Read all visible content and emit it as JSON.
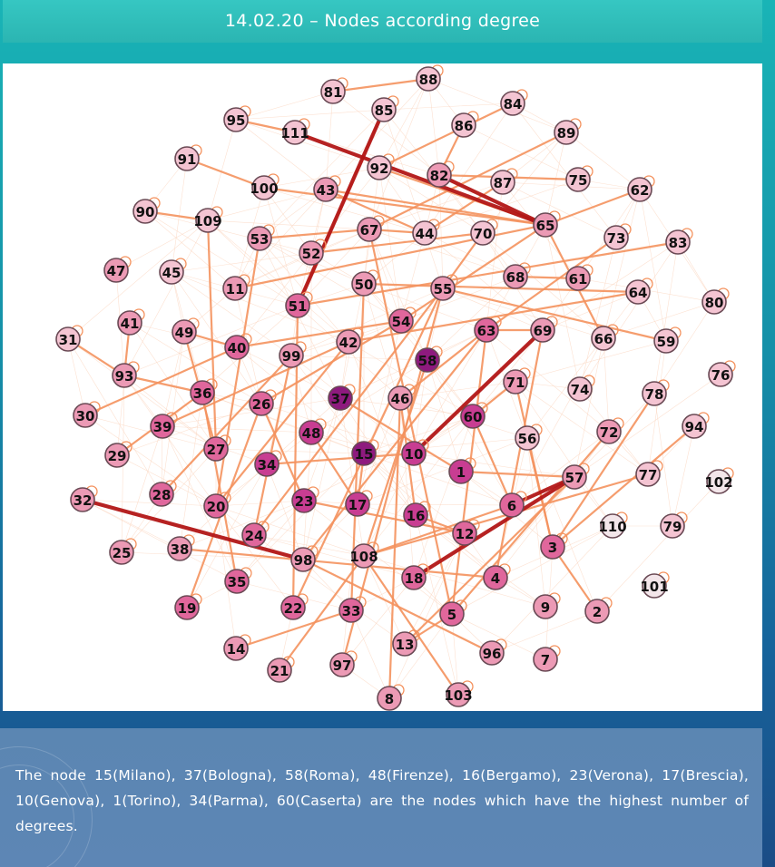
{
  "slide": {
    "title": "14.02.20 – Nodes according degree",
    "caption": "The node 15(Milano), 37(Bologna), 58(Roma), 48(Firenze), 16(Bergamo), 23(Verona), 17(Brescia), 10(Genova), 1(Torino), 34(Parma), 60(Caserta) are the nodes which have the highest number of degrees."
  },
  "colors": {
    "level0": "#f3e6ea",
    "level1": "#f4c4d2",
    "level2": "#ec9ab5",
    "level3": "#e0679c",
    "level4": "#c83d92",
    "level5": "#8e1a7e",
    "node_border": "#6a4a55",
    "edge_orange": "#f4925e",
    "edge_red": "#b21616",
    "edge_faint": "#fbd4bd"
  },
  "nodes": [
    {
      "id": "88",
      "level": 1
    },
    {
      "id": "81",
      "level": 1
    },
    {
      "id": "85",
      "level": 1
    },
    {
      "id": "84",
      "level": 1
    },
    {
      "id": "95",
      "level": 1
    },
    {
      "id": "111",
      "level": 1
    },
    {
      "id": "86",
      "level": 1
    },
    {
      "id": "89",
      "level": 1
    },
    {
      "id": "91",
      "level": 1
    },
    {
      "id": "92",
      "level": 1
    },
    {
      "id": "82",
      "level": 2
    },
    {
      "id": "87",
      "level": 1
    },
    {
      "id": "75",
      "level": 1
    },
    {
      "id": "62",
      "level": 1
    },
    {
      "id": "100",
      "level": 1
    },
    {
      "id": "43",
      "level": 2
    },
    {
      "id": "65",
      "level": 2
    },
    {
      "id": "90",
      "level": 1
    },
    {
      "id": "109",
      "level": 1
    },
    {
      "id": "67",
      "level": 2
    },
    {
      "id": "44",
      "level": 1
    },
    {
      "id": "70",
      "level": 1
    },
    {
      "id": "73",
      "level": 1
    },
    {
      "id": "83",
      "level": 1
    },
    {
      "id": "53",
      "level": 2
    },
    {
      "id": "52",
      "level": 2
    },
    {
      "id": "47",
      "level": 2
    },
    {
      "id": "45",
      "level": 1
    },
    {
      "id": "68",
      "level": 2
    },
    {
      "id": "61",
      "level": 2
    },
    {
      "id": "64",
      "level": 1
    },
    {
      "id": "80",
      "level": 1
    },
    {
      "id": "11",
      "level": 2
    },
    {
      "id": "50",
      "level": 2
    },
    {
      "id": "55",
      "level": 2
    },
    {
      "id": "51",
      "level": 3
    },
    {
      "id": "41",
      "level": 2
    },
    {
      "id": "54",
      "level": 3
    },
    {
      "id": "63",
      "level": 3
    },
    {
      "id": "69",
      "level": 2
    },
    {
      "id": "66",
      "level": 1
    },
    {
      "id": "59",
      "level": 1
    },
    {
      "id": "31",
      "level": 1
    },
    {
      "id": "49",
      "level": 2
    },
    {
      "id": "40",
      "level": 3
    },
    {
      "id": "42",
      "level": 2
    },
    {
      "id": "99",
      "level": 2
    },
    {
      "id": "58",
      "level": 5
    },
    {
      "id": "76",
      "level": 1
    },
    {
      "id": "93",
      "level": 2
    },
    {
      "id": "36",
      "level": 3
    },
    {
      "id": "71",
      "level": 2
    },
    {
      "id": "74",
      "level": 1
    },
    {
      "id": "78",
      "level": 1
    },
    {
      "id": "26",
      "level": 3
    },
    {
      "id": "37",
      "level": 5
    },
    {
      "id": "46",
      "level": 2
    },
    {
      "id": "60",
      "level": 4
    },
    {
      "id": "30",
      "level": 2
    },
    {
      "id": "39",
      "level": 3
    },
    {
      "id": "48",
      "level": 4
    },
    {
      "id": "72",
      "level": 2
    },
    {
      "id": "94",
      "level": 1
    },
    {
      "id": "29",
      "level": 2
    },
    {
      "id": "27",
      "level": 3
    },
    {
      "id": "56",
      "level": 1
    },
    {
      "id": "15",
      "level": 5
    },
    {
      "id": "10",
      "level": 4
    },
    {
      "id": "34",
      "level": 4
    },
    {
      "id": "1",
      "level": 4
    },
    {
      "id": "57",
      "level": 2
    },
    {
      "id": "77",
      "level": 1
    },
    {
      "id": "102",
      "level": 0
    },
    {
      "id": "28",
      "level": 3
    },
    {
      "id": "32",
      "level": 2
    },
    {
      "id": "23",
      "level": 4
    },
    {
      "id": "17",
      "level": 4
    },
    {
      "id": "20",
      "level": 3
    },
    {
      "id": "6",
      "level": 3
    },
    {
      "id": "16",
      "level": 4
    },
    {
      "id": "110",
      "level": 0
    },
    {
      "id": "79",
      "level": 1
    },
    {
      "id": "12",
      "level": 3
    },
    {
      "id": "24",
      "level": 3
    },
    {
      "id": "3",
      "level": 3
    },
    {
      "id": "25",
      "level": 2
    },
    {
      "id": "38",
      "level": 2
    },
    {
      "id": "98",
      "level": 2
    },
    {
      "id": "108",
      "level": 2
    },
    {
      "id": "18",
      "level": 3
    },
    {
      "id": "4",
      "level": 3
    },
    {
      "id": "35",
      "level": 3
    },
    {
      "id": "101",
      "level": 0
    },
    {
      "id": "19",
      "level": 3
    },
    {
      "id": "22",
      "level": 3
    },
    {
      "id": "33",
      "level": 3
    },
    {
      "id": "5",
      "level": 3
    },
    {
      "id": "9",
      "level": 2
    },
    {
      "id": "2",
      "level": 2
    },
    {
      "id": "13",
      "level": 2
    },
    {
      "id": "14",
      "level": 2
    },
    {
      "id": "96",
      "level": 2
    },
    {
      "id": "7",
      "level": 2
    },
    {
      "id": "21",
      "level": 2
    },
    {
      "id": "97",
      "level": 2
    },
    {
      "id": "8",
      "level": 2
    },
    {
      "id": "103",
      "level": 2
    }
  ],
  "edges_strong": [
    [
      "85",
      "51"
    ],
    [
      "111",
      "65"
    ],
    [
      "82",
      "65"
    ],
    [
      "32",
      "98"
    ],
    [
      "69",
      "10"
    ],
    [
      "6",
      "57"
    ],
    [
      "18",
      "57"
    ]
  ],
  "edges_medium": [
    [
      "88",
      "81"
    ],
    [
      "85",
      "51"
    ],
    [
      "84",
      "92"
    ],
    [
      "92",
      "65"
    ],
    [
      "100",
      "65"
    ],
    [
      "43",
      "65"
    ],
    [
      "109",
      "27"
    ],
    [
      "53",
      "67"
    ],
    [
      "67",
      "44"
    ],
    [
      "44",
      "43"
    ],
    [
      "89",
      "67"
    ],
    [
      "75",
      "82"
    ],
    [
      "70",
      "55"
    ],
    [
      "70",
      "52"
    ],
    [
      "65",
      "11"
    ],
    [
      "65",
      "54"
    ],
    [
      "73",
      "63"
    ],
    [
      "83",
      "51"
    ],
    [
      "61",
      "68"
    ],
    [
      "64",
      "42"
    ],
    [
      "64",
      "50"
    ],
    [
      "55",
      "24"
    ],
    [
      "54",
      "40"
    ],
    [
      "54",
      "26"
    ],
    [
      "50",
      "33"
    ],
    [
      "67",
      "5"
    ],
    [
      "46",
      "16"
    ],
    [
      "46",
      "8"
    ],
    [
      "63",
      "5"
    ],
    [
      "63",
      "46"
    ],
    [
      "69",
      "63"
    ],
    [
      "69",
      "4"
    ],
    [
      "71",
      "3"
    ],
    [
      "56",
      "3"
    ],
    [
      "72",
      "5"
    ],
    [
      "94",
      "3"
    ],
    [
      "77",
      "108"
    ],
    [
      "60",
      "6"
    ],
    [
      "59",
      "55"
    ],
    [
      "66",
      "65"
    ],
    [
      "30",
      "40"
    ],
    [
      "93",
      "41"
    ],
    [
      "93",
      "36"
    ],
    [
      "39",
      "42"
    ],
    [
      "29",
      "36"
    ],
    [
      "49",
      "40"
    ],
    [
      "49",
      "27"
    ],
    [
      "31",
      "93"
    ],
    [
      "28",
      "99"
    ],
    [
      "20",
      "42"
    ],
    [
      "20",
      "53"
    ],
    [
      "35",
      "36"
    ],
    [
      "19",
      "26"
    ],
    [
      "22",
      "51"
    ],
    [
      "22",
      "55"
    ],
    [
      "23",
      "26"
    ],
    [
      "24",
      "99"
    ],
    [
      "98",
      "63"
    ],
    [
      "108",
      "6"
    ],
    [
      "108",
      "58"
    ],
    [
      "12",
      "16"
    ],
    [
      "12",
      "23"
    ],
    [
      "13",
      "57"
    ],
    [
      "14",
      "33"
    ],
    [
      "97",
      "55"
    ],
    [
      "21",
      "108"
    ],
    [
      "96",
      "98"
    ],
    [
      "5",
      "13"
    ],
    [
      "4",
      "38"
    ],
    [
      "2",
      "3"
    ],
    [
      "103",
      "108"
    ],
    [
      "37",
      "1"
    ],
    [
      "48",
      "17"
    ],
    [
      "10",
      "34"
    ],
    [
      "15",
      "17"
    ],
    [
      "1",
      "57"
    ],
    [
      "60",
      "71"
    ],
    [
      "3",
      "78"
    ],
    [
      "62",
      "65"
    ],
    [
      "90",
      "109"
    ],
    [
      "91",
      "100"
    ],
    [
      "86",
      "82"
    ],
    [
      "95",
      "111"
    ],
    [
      "87",
      "44"
    ]
  ]
}
